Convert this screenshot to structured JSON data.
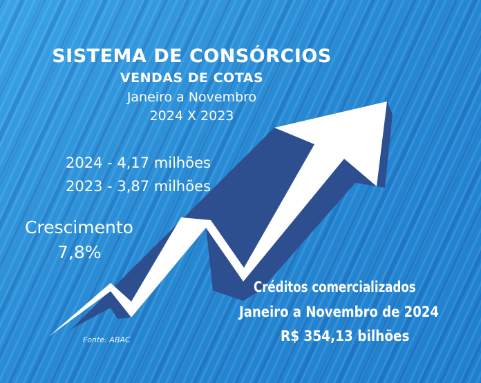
{
  "header": {
    "title": "SISTEMA DE CONSÓRCIOS",
    "subtitle": "VENDAS DE COTAS",
    "period": "Janeiro a Novembro",
    "comparison": "2024 X 2023"
  },
  "sales": {
    "line_2024": "2024 - 4,17 milhões",
    "line_2023": "2023 - 3,87 milhões"
  },
  "growth": {
    "label": "Crescimento",
    "value": "7,8%"
  },
  "credits": {
    "title": "Créditos comercializados",
    "period": "Janeiro a Novembro de 2024",
    "value": "R$ 354,13 bilhões"
  },
  "source": "Fonte: ABAC",
  "colors": {
    "background": "#2a8fd6",
    "arrow": "#ffffff",
    "arrow_shadow": "#2d4f8f",
    "text": "#ffffff"
  }
}
